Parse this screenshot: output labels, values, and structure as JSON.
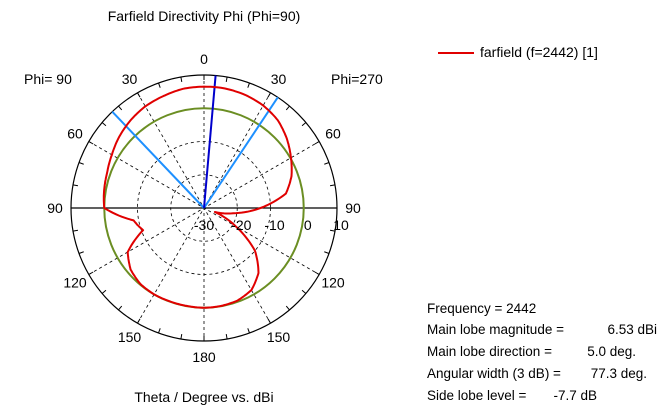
{
  "title": "Farfield Directivity Phi (Phi=90)",
  "xlabel": "Theta / Degree vs. dBi",
  "phi_left": "Phi= 90",
  "phi_right": "Phi=270",
  "legend": {
    "label": "farfield (f=2442) [1]",
    "color": "#e00000"
  },
  "info": {
    "frequency": {
      "label": "Frequency = 2442",
      "value": ""
    },
    "main_lobe_magnitude": {
      "label": "Main lobe magnitude =",
      "value": "6.53 dBi"
    },
    "main_lobe_direction": {
      "label": "Main lobe direction =",
      "value": "5.0 deg."
    },
    "angular_width": {
      "label": "Angular width (3 dB) =",
      "value": "77.3 deg."
    },
    "side_lobe_level": {
      "label": "Side lobe level =",
      "value": "-7.7 dB"
    }
  },
  "chart_data": {
    "type": "polar",
    "title": "Farfield Directivity Phi (Phi=90)",
    "xlabel": "Theta / Degree vs. dBi",
    "r_min_db": -30,
    "r_max_db": 10,
    "radial_ticks": [
      -30,
      -20,
      -10,
      0,
      10
    ],
    "radial_tick_labels": [
      "-30",
      "-20",
      "-10",
      "0",
      "10"
    ],
    "angle_labels": [
      {
        "deg": 0,
        "text": "0"
      },
      {
        "deg": 30,
        "text": "30"
      },
      {
        "deg": 60,
        "text": "60"
      },
      {
        "deg": 90,
        "text": "90"
      },
      {
        "deg": 120,
        "text": "120"
      },
      {
        "deg": 150,
        "text": "150"
      },
      {
        "deg": 180,
        "text": "180"
      },
      {
        "deg": -150,
        "text": "150"
      },
      {
        "deg": -120,
        "text": "120"
      },
      {
        "deg": -90,
        "text": "90"
      },
      {
        "deg": -60,
        "text": "60"
      },
      {
        "deg": -30,
        "text": "30"
      }
    ],
    "series": [
      {
        "name": "farfield (f=2442) [1]",
        "color": "#e00000",
        "theta_deg": [
          0,
          10,
          20,
          30,
          40,
          50,
          60,
          70,
          80,
          90,
          100,
          110,
          120,
          130,
          140,
          150,
          160,
          170,
          180,
          -170,
          -160,
          -150,
          -140,
          -130,
          -120,
          -110,
          -100,
          -90,
          -80,
          -70,
          -60,
          -50,
          -40,
          -30,
          -20,
          -10
        ],
        "directivity_dbi": [
          6.5,
          6.4,
          5.8,
          5.3,
          4.4,
          3.3,
          2.0,
          1.0,
          0.5,
          0.0,
          -8.5,
          -10.5,
          -3.5,
          -1.2,
          -0.2,
          0.0,
          -0.1,
          -0.1,
          0.0,
          -0.1,
          -0.4,
          -1.5,
          -4.5,
          -10.0,
          -19.0,
          -26.5,
          -21.0,
          -13.0,
          -5.0,
          -2.0,
          0.2,
          2.5,
          4.5,
          5.6,
          6.2,
          6.5
        ]
      }
    ],
    "reference_circle": {
      "db": 0,
      "color": "#6b8e23"
    },
    "main_lobe_line": {
      "theta_deg": 5,
      "color": "#0000cc"
    },
    "beamwidth_lines": {
      "theta_deg": [
        43.6,
        -33.7
      ],
      "color": "#1e90ff"
    }
  }
}
